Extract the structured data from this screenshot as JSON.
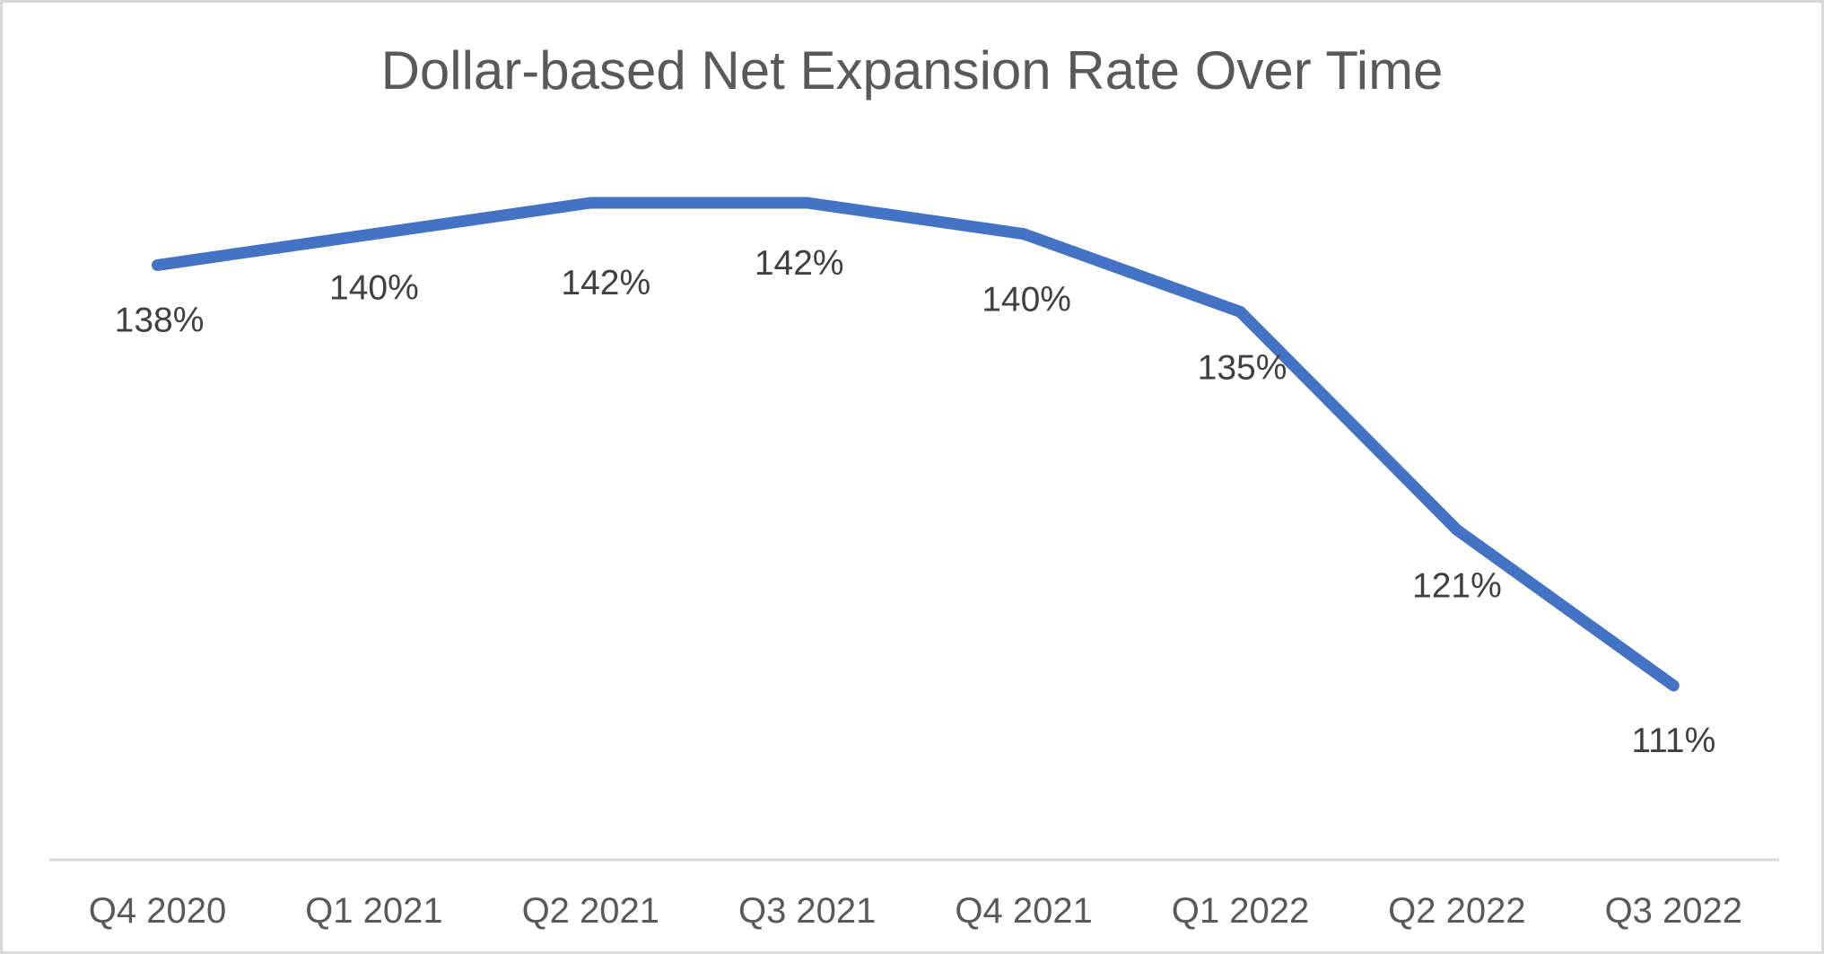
{
  "chart_data": {
    "type": "line",
    "title": "Dollar-based Net Expansion Rate Over Time",
    "categories": [
      "Q4 2020",
      "Q1 2021",
      "Q2 2021",
      "Q3 2021",
      "Q4 2021",
      "Q1 2022",
      "Q2 2022",
      "Q3 2022"
    ],
    "series": [
      {
        "name": "Dollar-based Net Expansion Rate",
        "values": [
          138,
          140,
          142,
          142,
          140,
          135,
          121,
          111
        ]
      }
    ],
    "data_labels": [
      "138%",
      "140%",
      "142%",
      "142%",
      "140%",
      "135%",
      "121%",
      "111%"
    ],
    "unit": "%",
    "xlabel": "",
    "ylabel": "",
    "ylim": [
      105,
      148
    ],
    "grid": false,
    "legend": "none",
    "data_label_position": "below",
    "colors": {
      "line": "#4472C4",
      "title_text": "#595959",
      "data_label_text": "#404040",
      "axis_label_text": "#595959",
      "axis_line": "#D9D9D9",
      "frame_border": "#D9D9D9",
      "background": "#FFFFFF"
    }
  }
}
